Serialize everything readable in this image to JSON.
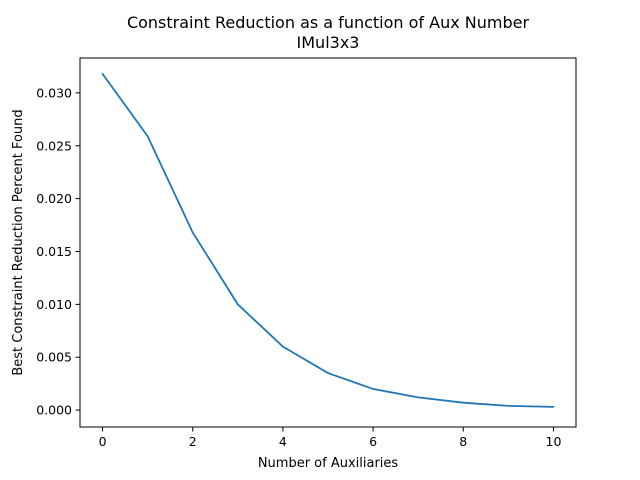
{
  "chart_data": {
    "type": "line",
    "title": "Constraint Reduction as a function of Aux Number",
    "subtitle": "IMul3x3",
    "xlabel": "Number of Auxiliaries",
    "ylabel": "Best Constraint Reduction Percent Found",
    "xlim": [
      -0.5,
      10.5
    ],
    "ylim": [
      -0.0016,
      0.0333
    ],
    "xticks": [
      0,
      2,
      4,
      6,
      8,
      10
    ],
    "yticks": [
      0.0,
      0.005,
      0.01,
      0.015,
      0.02,
      0.025,
      0.03
    ],
    "ytick_labels": [
      "0.000",
      "0.005",
      "0.010",
      "0.015",
      "0.020",
      "0.025",
      "0.030"
    ],
    "grid": false,
    "series": [
      {
        "color": "#1f77b4",
        "x": [
          0,
          1,
          2,
          3,
          4,
          5,
          6,
          7,
          8,
          9,
          10
        ],
        "y": [
          0.0318,
          0.0259,
          0.0168,
          0.01,
          0.006,
          0.0035,
          0.002,
          0.0012,
          0.0007,
          0.0004,
          0.0003
        ]
      }
    ]
  }
}
